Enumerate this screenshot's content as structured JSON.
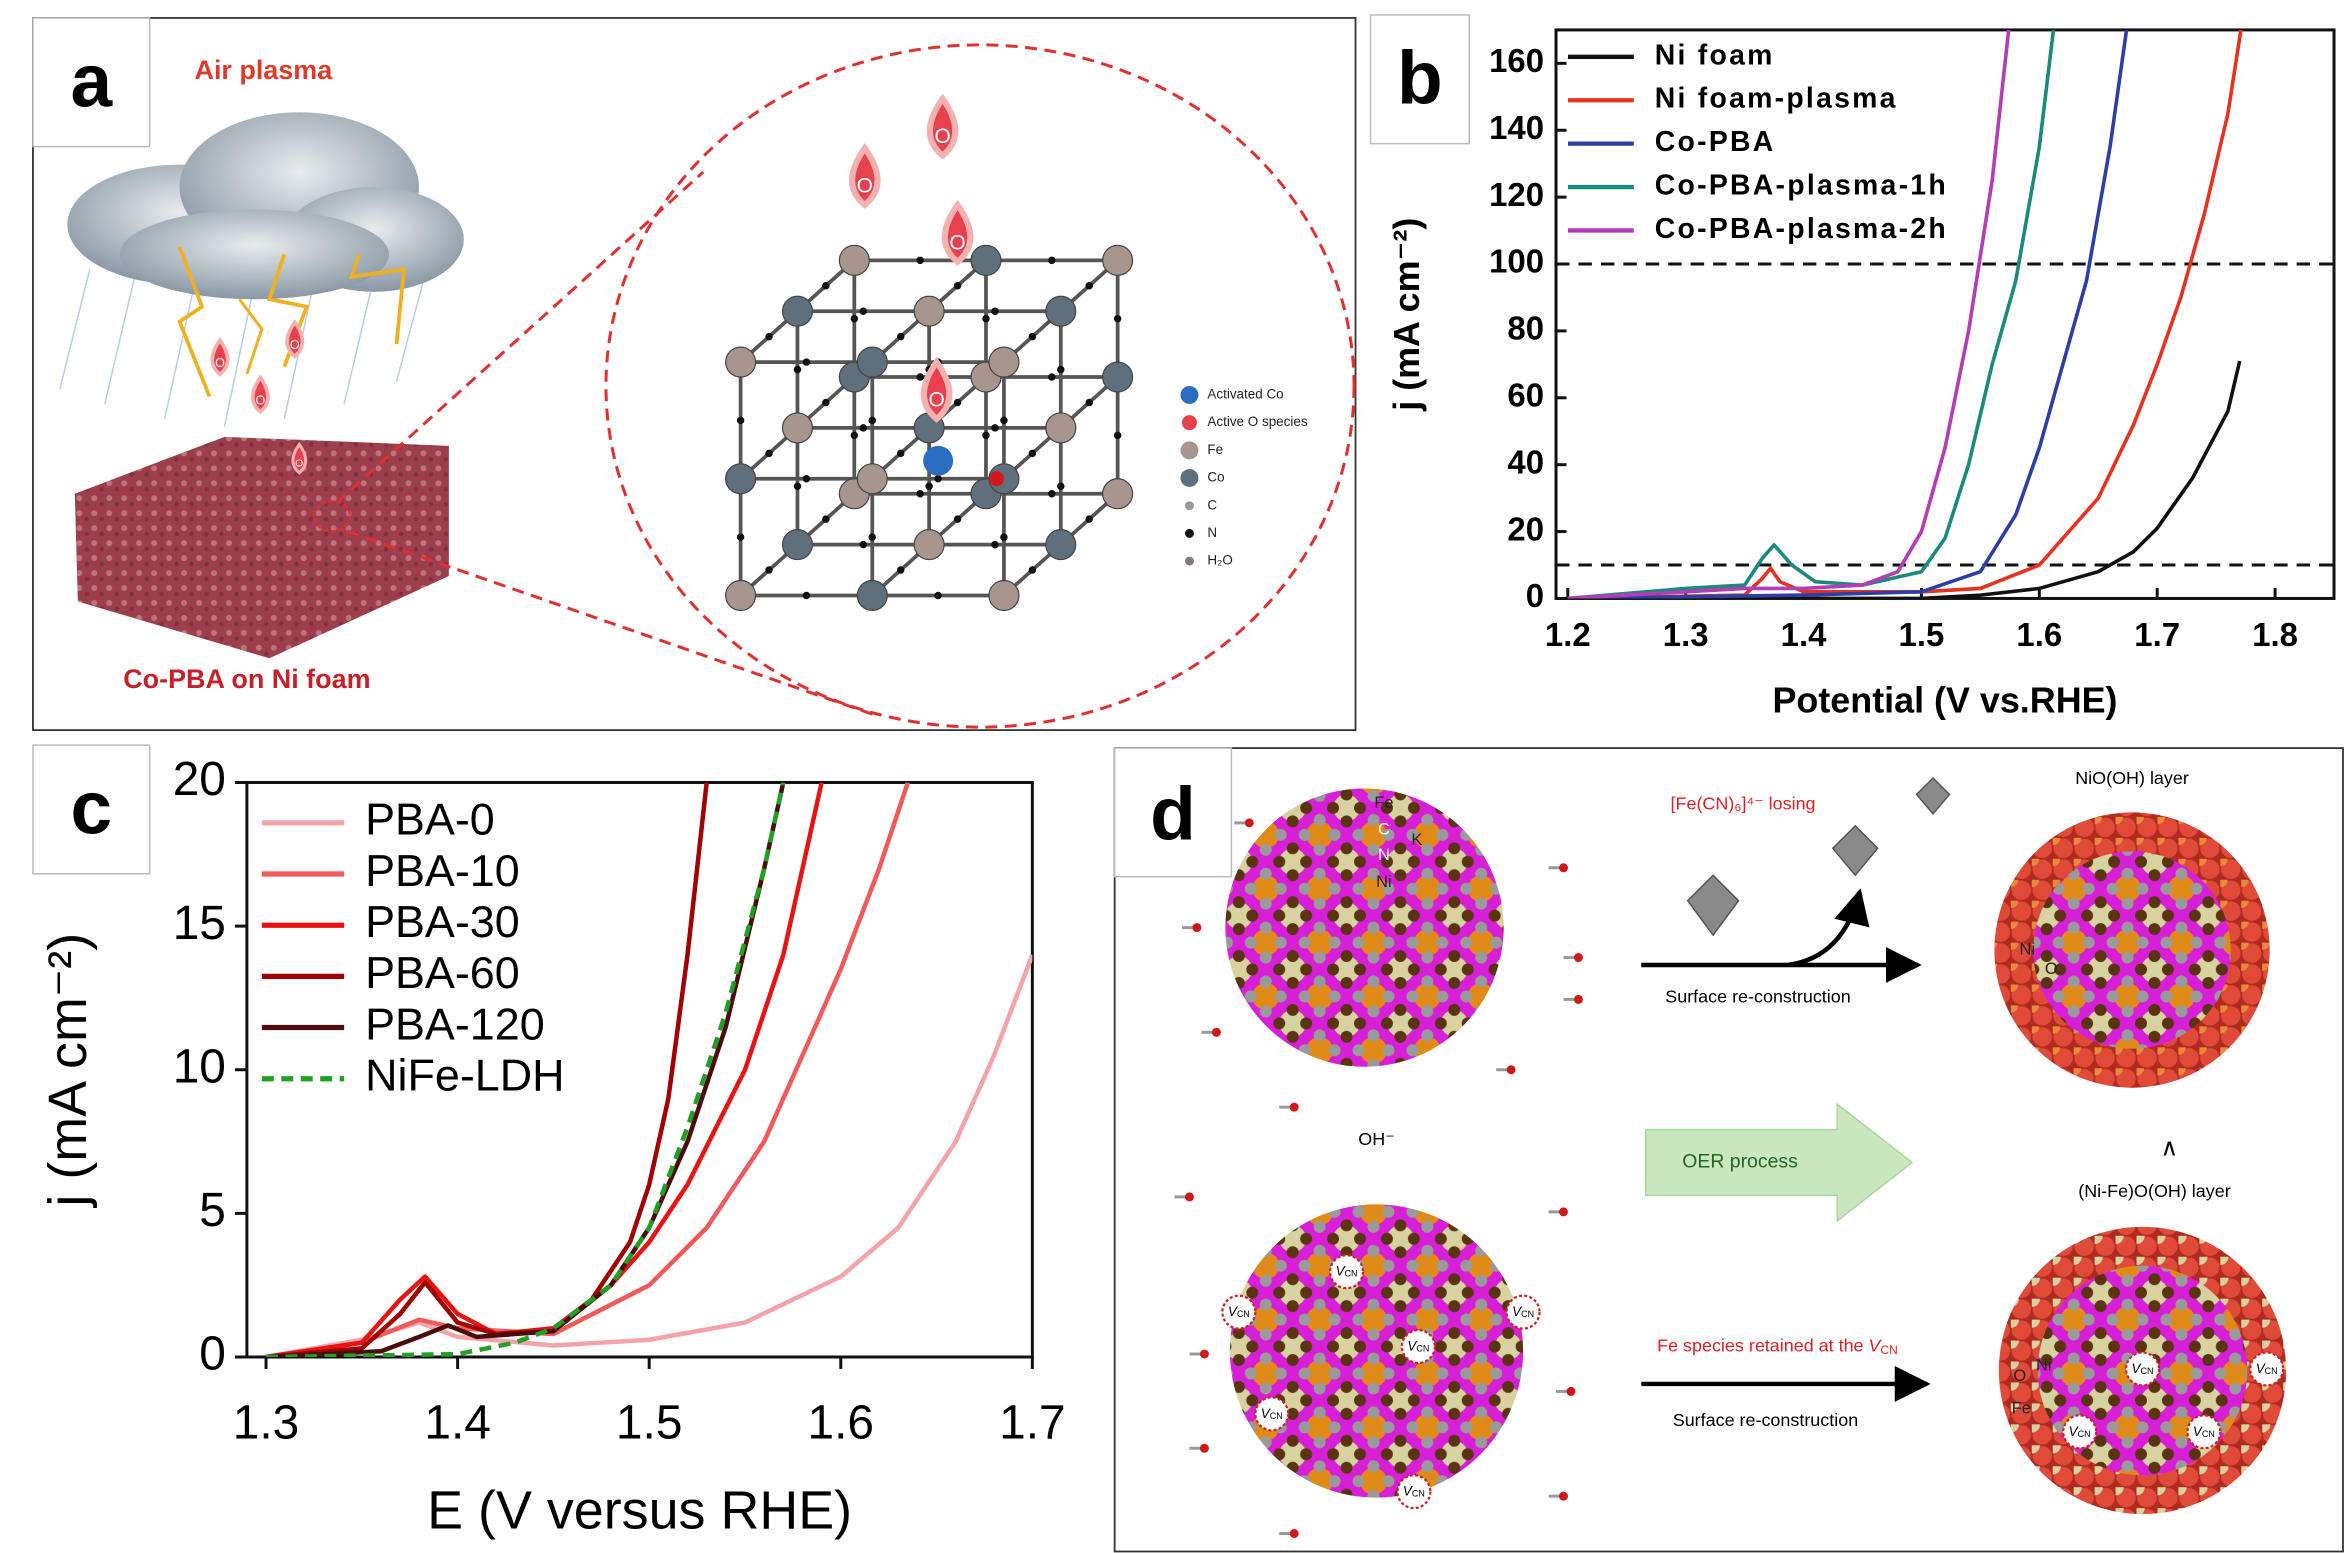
{
  "panel_labels": [
    "a",
    "b",
    "c",
    "d"
  ],
  "panel_a": {
    "title": "Air plasma",
    "substrate": "Co-PBA on Ni foam",
    "drop_label": "O",
    "legend": [
      "Activated Co",
      "Active O species",
      "Fe",
      "Co",
      "C",
      "N",
      "H₂O"
    ]
  },
  "chart_data": [
    {
      "type": "line",
      "xlabel": "Potential (V vs.RHE)",
      "ylabel": "j (mA cm⁻²)",
      "xlim": [
        1.19,
        1.85
      ],
      "ylim": [
        0,
        170
      ],
      "xticks": [
        1.2,
        1.3,
        1.4,
        1.5,
        1.6,
        1.7,
        1.8
      ],
      "yticks": [
        0,
        20,
        40,
        60,
        80,
        100,
        120,
        140,
        160
      ],
      "reference_lines": [
        100,
        10
      ],
      "legend": "upper left",
      "series": [
        {
          "name": "Ni foam",
          "color": "#111111",
          "x": [
            1.2,
            1.5,
            1.55,
            1.6,
            1.65,
            1.68,
            1.7,
            1.73,
            1.76,
            1.77
          ],
          "values": [
            0,
            0,
            1,
            3,
            8,
            14,
            21,
            36,
            56,
            71
          ]
        },
        {
          "name": "Ni foam-plasma",
          "color": "#e8321e",
          "x": [
            1.2,
            1.35,
            1.365,
            1.372,
            1.38,
            1.4,
            1.5,
            1.55,
            1.6,
            1.65,
            1.68,
            1.7,
            1.72,
            1.74,
            1.76,
            1.771
          ],
          "values": [
            0,
            1,
            6,
            9,
            5,
            2,
            2,
            3,
            10,
            30,
            52,
            70,
            90,
            115,
            145,
            170
          ]
        },
        {
          "name": "Co-PBA",
          "color": "#2c3fa8",
          "x": [
            1.2,
            1.4,
            1.5,
            1.55,
            1.58,
            1.6,
            1.62,
            1.64,
            1.66,
            1.674
          ],
          "values": [
            0,
            1,
            2,
            8,
            25,
            45,
            70,
            95,
            135,
            170
          ]
        },
        {
          "name": "Co-PBA-plasma-1h",
          "color": "#1a8a7a",
          "x": [
            1.2,
            1.3,
            1.35,
            1.365,
            1.375,
            1.39,
            1.41,
            1.45,
            1.5,
            1.52,
            1.54,
            1.56,
            1.58,
            1.6,
            1.612
          ],
          "values": [
            0,
            3,
            4,
            12,
            16,
            10,
            5,
            4,
            8,
            18,
            40,
            70,
            95,
            135,
            170
          ]
        },
        {
          "name": "Co-PBA-plasma-2h",
          "color": "#b43cb4",
          "x": [
            1.2,
            1.3,
            1.35,
            1.4,
            1.45,
            1.48,
            1.5,
            1.52,
            1.54,
            1.56,
            1.574
          ],
          "values": [
            0,
            2,
            3,
            3,
            4,
            8,
            20,
            45,
            80,
            125,
            170
          ]
        }
      ]
    },
    {
      "type": "line",
      "xlabel": "E (V versus RHE)",
      "ylabel": "j (mA cm⁻²)",
      "xlim": [
        1.29,
        1.7
      ],
      "ylim": [
        0,
        20
      ],
      "xticks": [
        1.3,
        1.4,
        1.5,
        1.6,
        1.7
      ],
      "yticks": [
        0,
        5,
        10,
        15,
        20
      ],
      "legend": "upper left",
      "series": [
        {
          "name": "PBA-0",
          "color": "#f4a3aa",
          "x": [
            1.3,
            1.35,
            1.38,
            1.4,
            1.45,
            1.5,
            1.55,
            1.6,
            1.63,
            1.66,
            1.68,
            1.7
          ],
          "values": [
            0,
            0.6,
            1.2,
            0.7,
            0.4,
            0.6,
            1.2,
            2.8,
            4.5,
            7.5,
            10.5,
            14
          ]
        },
        {
          "name": "PBA-10",
          "color": "#f05a5a",
          "x": [
            1.3,
            1.35,
            1.38,
            1.4,
            1.45,
            1.5,
            1.53,
            1.56,
            1.58,
            1.6,
            1.62,
            1.635
          ],
          "values": [
            0,
            0.5,
            1.3,
            1,
            0.8,
            2.5,
            4.5,
            7.5,
            10.5,
            13.5,
            17,
            20
          ]
        },
        {
          "name": "PBA-30",
          "color": "#e81414",
          "x": [
            1.3,
            1.35,
            1.37,
            1.383,
            1.4,
            1.42,
            1.45,
            1.48,
            1.5,
            1.52,
            1.55,
            1.57,
            1.59
          ],
          "values": [
            0,
            0.5,
            2,
            2.8,
            1.5,
            0.8,
            1,
            2.5,
            4,
            6,
            10,
            14,
            20
          ]
        },
        {
          "name": "PBA-60",
          "color": "#a00000",
          "x": [
            1.3,
            1.35,
            1.37,
            1.383,
            1.4,
            1.42,
            1.45,
            1.47,
            1.49,
            1.5,
            1.51,
            1.52,
            1.53
          ],
          "values": [
            0,
            0.3,
            1.5,
            2.6,
            1.2,
            0.8,
            0.9,
            2,
            4,
            6,
            9,
            14,
            20
          ]
        },
        {
          "name": "PBA-120",
          "color": "#4a0c0c",
          "x": [
            1.3,
            1.36,
            1.38,
            1.395,
            1.41,
            1.45,
            1.48,
            1.5,
            1.52,
            1.54,
            1.56,
            1.57
          ],
          "values": [
            0,
            0.2,
            0.7,
            1.1,
            0.7,
            0.9,
            2.5,
            4.5,
            7.5,
            11.5,
            17,
            20
          ]
        },
        {
          "name": "NiFe-LDH",
          "color": "#22a022",
          "dashed": true,
          "x": [
            1.3,
            1.4,
            1.43,
            1.45,
            1.48,
            1.5,
            1.52,
            1.54,
            1.56,
            1.57
          ],
          "values": [
            0,
            0.1,
            0.5,
            1,
            2.5,
            4.5,
            8,
            12,
            17,
            20
          ]
        }
      ]
    }
  ],
  "panel_d": {
    "atoms_top": [
      "Fe",
      "C",
      "N",
      "Ni",
      "K"
    ],
    "loss": "[Fe(CN)₆]⁴⁻ losing",
    "step_top": "Surface re-construction",
    "layer_top": "NiO(OH) layer",
    "process": "OER process",
    "up_arrow": "∧",
    "layer_bottom": "(Ni-Fe)O(OH) layer",
    "ion": "OH⁻",
    "retained": "Fe species retained at the ",
    "vacancy": "V",
    "vacancy_sub": "CN",
    "step_bottom": "Surface re-construction",
    "atoms_right_top": [
      "Ni",
      "O"
    ],
    "atoms_right_bottom": [
      "O",
      "Ni",
      "Fe"
    ]
  }
}
